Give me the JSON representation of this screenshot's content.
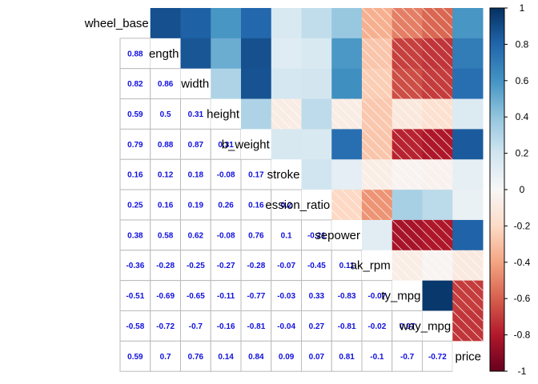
{
  "chart_data": {
    "type": "heatmap",
    "variables": [
      "wheel_base",
      "length",
      "width",
      "height",
      "curb_weight",
      "stroke",
      "compression_ratio",
      "horsepower",
      "peak_rpm",
      "city_mpg",
      "highway_mpg",
      "price"
    ],
    "visible_labels": [
      "wheel_base",
      "ength",
      "width",
      "height",
      "b_weight",
      "stroke",
      "ession_ratio",
      "sepower",
      "ak_rpm",
      "ty_mpg",
      "way_mpg",
      "price"
    ],
    "matrix": [
      [
        1,
        0.88,
        0.82,
        0.59,
        0.79,
        0.16,
        0.25,
        0.38,
        -0.36,
        -0.51,
        -0.58,
        0.59
      ],
      [
        0.88,
        1,
        0.86,
        0.5,
        0.88,
        0.12,
        0.16,
        0.58,
        -0.28,
        -0.69,
        -0.72,
        0.7
      ],
      [
        0.82,
        0.86,
        1,
        0.31,
        0.87,
        0.18,
        0.19,
        0.62,
        -0.25,
        -0.65,
        -0.7,
        0.76
      ],
      [
        0.59,
        0.5,
        0.31,
        1,
        0.31,
        -0.08,
        0.26,
        -0.08,
        -0.27,
        -0.11,
        -0.16,
        0.14
      ],
      [
        0.79,
        0.88,
        0.87,
        0.31,
        1,
        0.17,
        0.16,
        0.76,
        -0.28,
        -0.77,
        -0.81,
        0.84
      ],
      [
        0.16,
        0.12,
        0.18,
        -0.08,
        0.17,
        1,
        0.2,
        0.1,
        -0.07,
        -0.03,
        -0.04,
        0.09
      ],
      [
        0.25,
        0.16,
        0.19,
        0.26,
        0.16,
        0.2,
        1,
        -0.21,
        -0.45,
        0.33,
        0.27,
        0.07
      ],
      [
        0.38,
        0.58,
        0.62,
        -0.08,
        0.76,
        0.1,
        -0.21,
        1,
        0.11,
        -0.83,
        -0.81,
        0.81
      ],
      [
        -0.36,
        -0.28,
        -0.25,
        -0.27,
        -0.28,
        -0.07,
        -0.45,
        0.11,
        1,
        -0.07,
        -0.02,
        -0.1
      ],
      [
        -0.51,
        -0.69,
        -0.65,
        -0.11,
        -0.77,
        -0.03,
        0.33,
        -0.83,
        -0.07,
        1,
        0.97,
        -0.7
      ],
      [
        -0.58,
        -0.72,
        -0.7,
        -0.16,
        -0.81,
        -0.04,
        0.27,
        -0.81,
        -0.02,
        0.97,
        1,
        -0.72
      ],
      [
        0.59,
        0.7,
        0.76,
        0.14,
        0.84,
        0.09,
        0.07,
        0.81,
        -0.1,
        -0.7,
        -0.72,
        1
      ]
    ],
    "lower_triangle": "numbers",
    "upper_triangle": "colored squares, hatched where negative",
    "colorbar": {
      "min": -1,
      "max": 1,
      "ticks": [
        "1",
        "0.8",
        "0.6",
        "0.4",
        "0.2",
        "0",
        "-0.2",
        "-0.4",
        "-0.6",
        "-0.8",
        "-1"
      ]
    },
    "colors": {
      "negative_end": "#67001f",
      "mid": "#f7f7f7",
      "positive_end": "#053061",
      "number_text": "#1010e0",
      "grid": "#bbbbbb"
    }
  }
}
